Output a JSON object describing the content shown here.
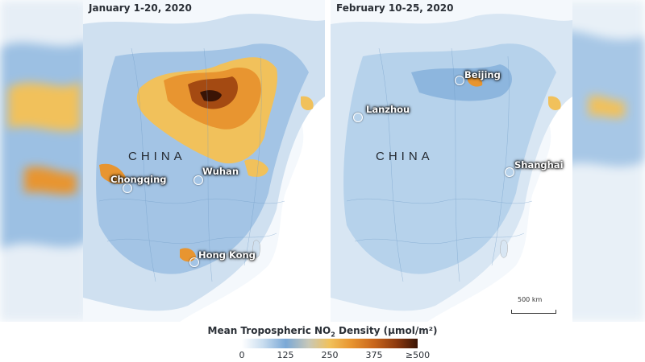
{
  "panels": {
    "left": {
      "date": "January 1-20, 2020",
      "country_label": "CHINA",
      "cities": [
        {
          "name": "Chongqing"
        },
        {
          "name": "Wuhan"
        },
        {
          "name": "Hong Kong"
        }
      ]
    },
    "right": {
      "date": "February 10-25, 2020",
      "country_label": "CHINA",
      "cities": [
        {
          "name": "Lanzhou"
        },
        {
          "name": "Beijing"
        },
        {
          "name": "Shanghai"
        }
      ],
      "scale_label": "500 km"
    }
  },
  "legend": {
    "title_prefix": "Mean Tropospheric NO",
    "title_sub": "2",
    "title_suffix": " Density (μmol/m²)",
    "ticks": [
      "0",
      "125",
      "250",
      "375",
      "≥500"
    ]
  },
  "colors": {
    "low": "#c9ddef",
    "mid": "#f1c15b",
    "high": "#3a1405"
  }
}
